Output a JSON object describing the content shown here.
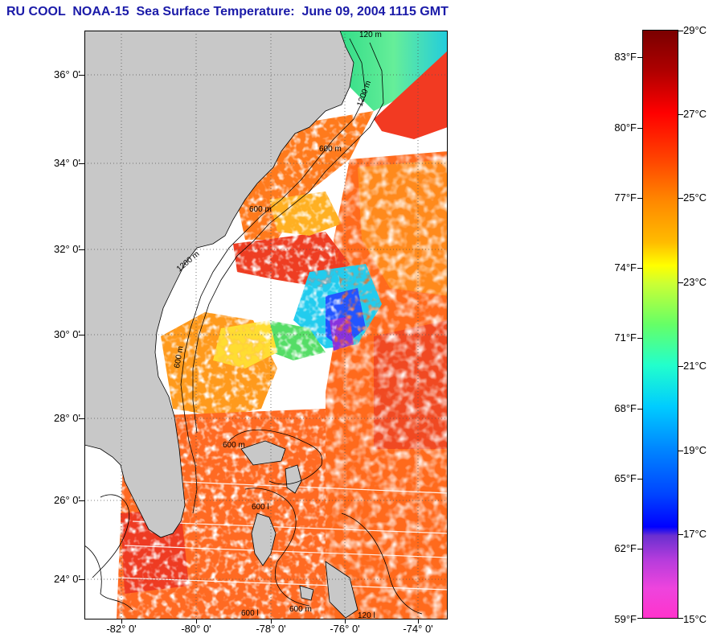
{
  "title": "RU COOL  NOAA-15  Sea Surface Temperature:  June 09, 2004 1115 GMT",
  "map": {
    "lat_labels": [
      "36° 0'",
      "34° 0'",
      "32° 0'",
      "30° 0'",
      "28° 0'",
      "26° 0'",
      "24° 0'"
    ],
    "lon_labels": [
      "-82° 0'",
      "-80° 0'",
      "-78° 0'",
      "-76° 0'",
      "-74° 0'"
    ],
    "contour_labels": [
      "120 m",
      "1200 m",
      "600 m",
      "600 m",
      "1200 m",
      "600 m",
      "600 m",
      "600 l",
      "600 l",
      "120 l",
      "600 m"
    ],
    "colors": {
      "land": "#c8c8c8",
      "cloud": "#ffffff",
      "warm": "#ff4a1a",
      "hot": "#ee2222",
      "orange": "#ff8a1e",
      "yellow": "#ffd23c",
      "green": "#33dd66",
      "cyan": "#22ddee",
      "blue": "#2244ff",
      "purple": "#aa33cc",
      "magenta": "#ff33cc"
    }
  },
  "colorbar": {
    "fahrenheit_labels": [
      "83°F",
      "80°F",
      "77°F",
      "74°F",
      "71°F",
      "68°F",
      "65°F",
      "62°F",
      "59°F"
    ],
    "celsius_labels": [
      "29°C",
      "27°C",
      "25°C",
      "23°C",
      "21°C",
      "19°C",
      "17°C",
      "15°C"
    ],
    "fahrenheit_values": [
      83,
      80,
      77,
      74,
      71,
      68,
      65,
      62,
      59
    ],
    "celsius_values": [
      29,
      27,
      25,
      23,
      21,
      19,
      17,
      15
    ],
    "range_c": [
      15,
      29
    ]
  }
}
